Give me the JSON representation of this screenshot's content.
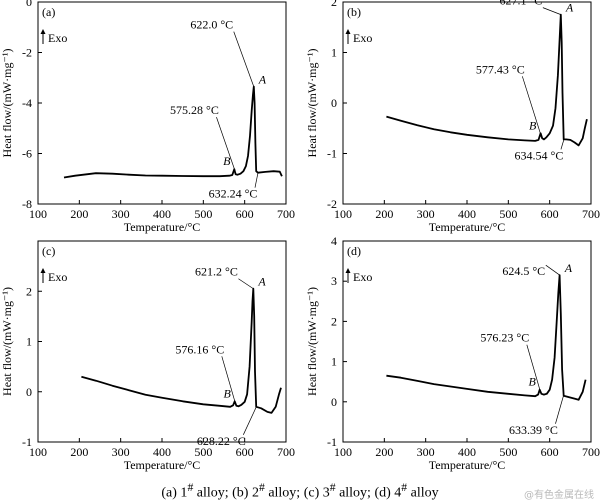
{
  "chart_data": [
    {
      "type": "line",
      "panel_label": "(a)",
      "exo_label": "Exo",
      "xlabel": "Temperature/°C",
      "ylabel": "Heat flow/(mW·mg⁻¹)",
      "xlim": [
        100,
        700
      ],
      "ylim": [
        -8,
        0
      ],
      "xticks": [
        100,
        200,
        300,
        400,
        500,
        600,
        700
      ],
      "yticks": [
        -8,
        -6,
        -4,
        -2,
        0
      ],
      "x": [
        163,
        190,
        240,
        280,
        320,
        360,
        400,
        450,
        500,
        540,
        563,
        570,
        575,
        578,
        583,
        590,
        597,
        603,
        608,
        613,
        617,
        620,
        622,
        624,
        626,
        628,
        632,
        650,
        670,
        685,
        690
      ],
      "y": [
        -6.95,
        -6.88,
        -6.78,
        -6.8,
        -6.84,
        -6.87,
        -6.88,
        -6.89,
        -6.9,
        -6.9,
        -6.88,
        -6.85,
        -6.62,
        -6.82,
        -6.84,
        -6.8,
        -6.7,
        -6.5,
        -6.1,
        -5.3,
        -4.3,
        -3.7,
        -3.35,
        -4.0,
        -5.6,
        -6.7,
        -6.76,
        -6.73,
        -6.7,
        -6.72,
        -6.9
      ],
      "annotations": [
        {
          "text": "622.0 °C",
          "x": 622.0,
          "y": -3.35
        },
        {
          "text": "575.28 °C",
          "x": 575.28,
          "y": -6.62
        },
        {
          "text": "632.24 °C",
          "x": 632.24,
          "y": -6.76
        },
        {
          "text": "A",
          "x": 622.0,
          "y": -3.35
        },
        {
          "text": "B",
          "x": 575.28,
          "y": -6.62
        }
      ]
    },
    {
      "type": "line",
      "panel_label": "(b)",
      "exo_label": "Exo",
      "xlabel": "Temperature/°C",
      "ylabel": "Heat flow/(mW·mg⁻¹)",
      "xlim": [
        100,
        700
      ],
      "ylim": [
        -2,
        2
      ],
      "xticks": [
        100,
        200,
        300,
        400,
        500,
        600,
        700
      ],
      "yticks": [
        -2,
        -1,
        0,
        1,
        2
      ],
      "x": [
        205,
        240,
        280,
        320,
        360,
        400,
        450,
        500,
        540,
        565,
        573,
        578,
        582,
        586,
        592,
        600,
        608,
        614,
        620,
        624,
        627,
        629,
        631,
        634,
        640,
        650,
        660,
        670,
        680,
        685,
        690
      ],
      "y": [
        -0.27,
        -0.35,
        -0.44,
        -0.52,
        -0.58,
        -0.63,
        -0.68,
        -0.72,
        -0.74,
        -0.75,
        -0.73,
        -0.6,
        -0.7,
        -0.72,
        -0.68,
        -0.6,
        -0.45,
        -0.1,
        0.55,
        1.25,
        1.75,
        1.2,
        0.2,
        -0.72,
        -0.72,
        -0.73,
        -0.78,
        -0.84,
        -0.7,
        -0.5,
        -0.32
      ],
      "annotations": [
        {
          "text": "627.1 °C",
          "x": 627.1,
          "y": 1.75
        },
        {
          "text": "577.43 °C",
          "x": 577.43,
          "y": -0.6
        },
        {
          "text": "634.54 °C",
          "x": 634.54,
          "y": -0.72
        },
        {
          "text": "A",
          "x": 627.1,
          "y": 1.75
        },
        {
          "text": "B",
          "x": 577.43,
          "y": -0.6
        }
      ]
    },
    {
      "type": "line",
      "panel_label": "(c)",
      "exo_label": "Exo",
      "xlabel": "Temperature/°C",
      "ylabel": "Heat flow/(mW·mg⁻¹)",
      "xlim": [
        100,
        700
      ],
      "ylim": [
        -1,
        3
      ],
      "xticks": [
        100,
        200,
        300,
        400,
        500,
        600,
        700
      ],
      "yticks": [
        -1,
        0,
        1,
        2
      ],
      "x": [
        205,
        240,
        280,
        320,
        360,
        400,
        450,
        500,
        540,
        565,
        572,
        576,
        580,
        585,
        592,
        600,
        606,
        612,
        617,
        619,
        621,
        623,
        625,
        628,
        640,
        655,
        665,
        675,
        683,
        688
      ],
      "y": [
        0.3,
        0.22,
        0.12,
        0.03,
        -0.06,
        -0.12,
        -0.19,
        -0.25,
        -0.28,
        -0.3,
        -0.27,
        -0.19,
        -0.28,
        -0.29,
        -0.26,
        -0.2,
        -0.05,
        0.5,
        1.4,
        1.8,
        2.05,
        1.5,
        0.4,
        -0.3,
        -0.33,
        -0.4,
        -0.42,
        -0.3,
        -0.05,
        0.08
      ],
      "annotations": [
        {
          "text": "621.2 °C",
          "x": 621.2,
          "y": 2.05
        },
        {
          "text": "576.16 °C",
          "x": 576.16,
          "y": -0.19
        },
        {
          "text": "628.22 °C",
          "x": 628.22,
          "y": -0.3
        },
        {
          "text": "A",
          "x": 621.2,
          "y": 2.05
        },
        {
          "text": "B",
          "x": 576.16,
          "y": -0.19
        }
      ]
    },
    {
      "type": "line",
      "panel_label": "(d)",
      "exo_label": "Exo",
      "xlabel": "Temperature/°C",
      "ylabel": "Heat flow/(mW·mg⁻¹)",
      "xlim": [
        100,
        700
      ],
      "ylim": [
        -1,
        4
      ],
      "xticks": [
        100,
        200,
        300,
        400,
        500,
        600,
        700
      ],
      "yticks": [
        -1,
        0,
        1,
        2,
        3,
        4
      ],
      "x": [
        205,
        240,
        280,
        320,
        360,
        400,
        450,
        500,
        540,
        565,
        572,
        576,
        580,
        586,
        593,
        600,
        606,
        612,
        617,
        621,
        624,
        627,
        630,
        634,
        645,
        660,
        670,
        680,
        687
      ],
      "y": [
        0.65,
        0.6,
        0.52,
        0.44,
        0.38,
        0.32,
        0.25,
        0.2,
        0.16,
        0.14,
        0.18,
        0.3,
        0.2,
        0.18,
        0.2,
        0.3,
        0.55,
        1.1,
        2.0,
        2.7,
        3.15,
        2.2,
        0.8,
        0.15,
        0.12,
        0.08,
        0.05,
        0.25,
        0.55
      ],
      "annotations": [
        {
          "text": "624.5 °C",
          "x": 624.5,
          "y": 3.15
        },
        {
          "text": "576.23 °C",
          "x": 576.23,
          "y": 0.3
        },
        {
          "text": "633.39 °C",
          "x": 633.39,
          "y": 0.15
        },
        {
          "text": "A",
          "x": 624.5,
          "y": 3.15
        },
        {
          "text": "B",
          "x": 576.23,
          "y": 0.3
        }
      ]
    }
  ],
  "caption_parts": [
    "(a) 1",
    "#",
    " alloy; (b) 2",
    "#",
    " alloy; (c) 3",
    "#",
    " alloy; (d) 4",
    "#",
    " alloy"
  ],
  "watermark": "@有色金属在线"
}
